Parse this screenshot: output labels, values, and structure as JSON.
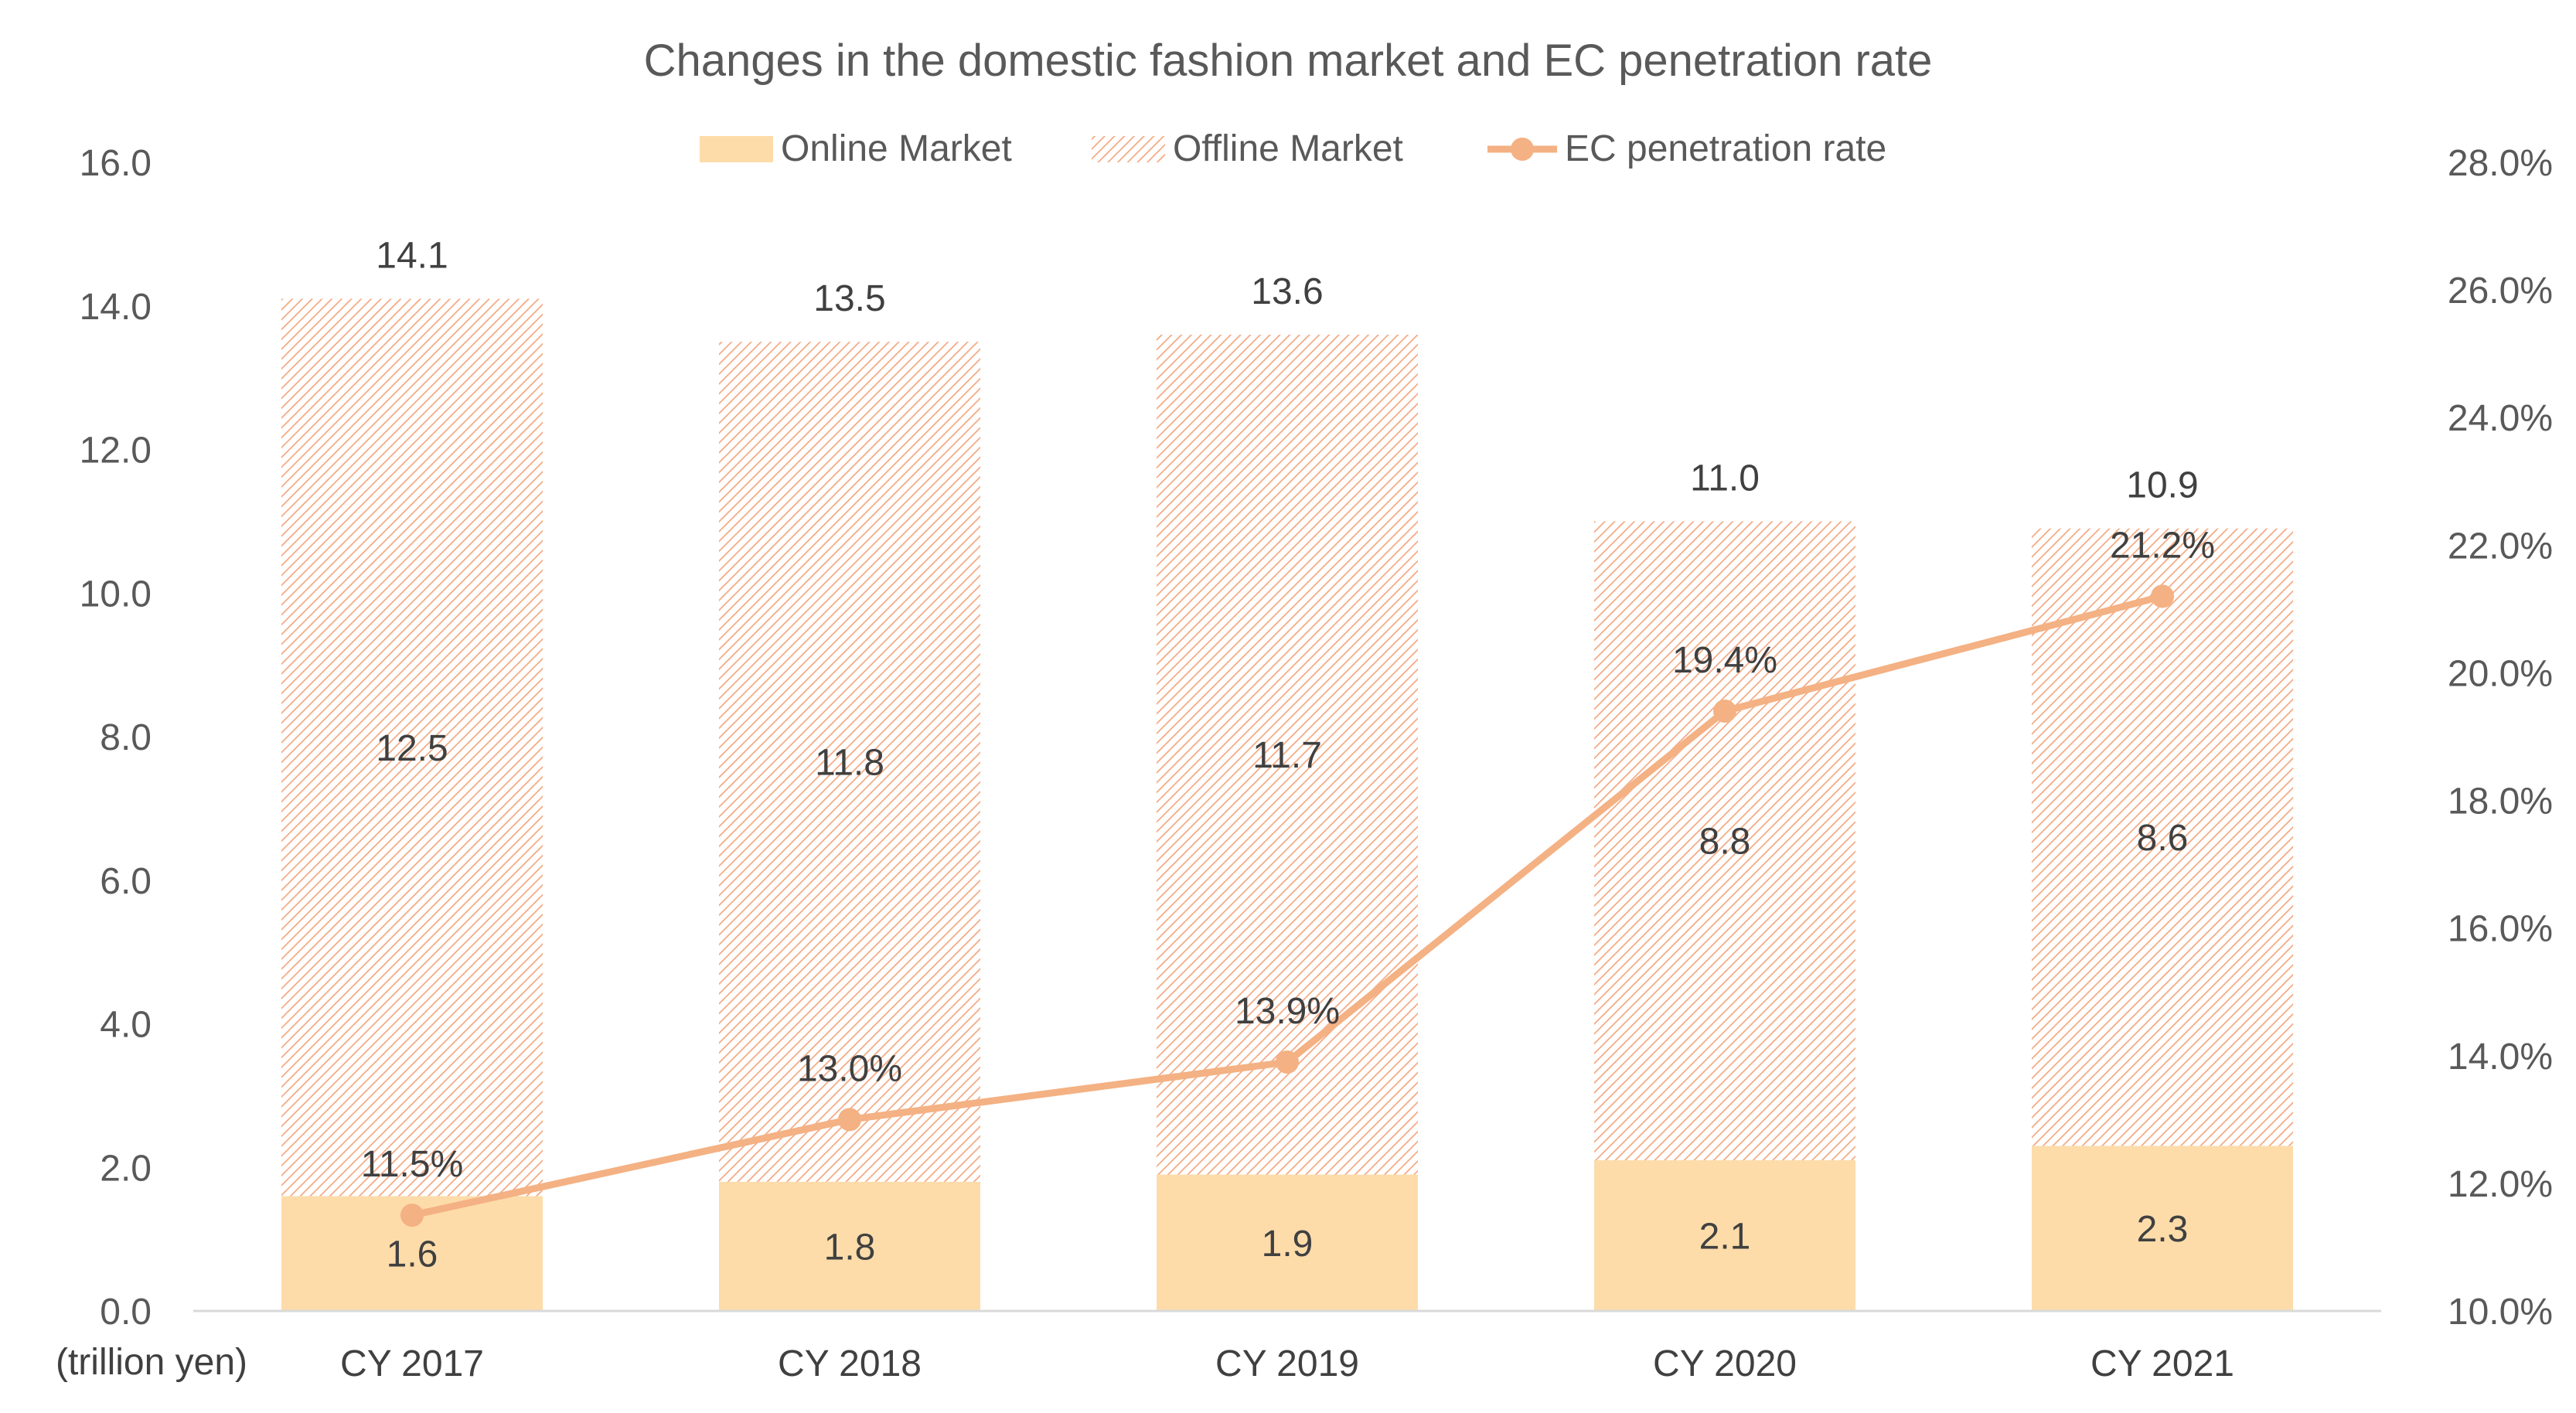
{
  "chart_data": {
    "type": "bar",
    "subtype": "stacked-bar-with-line",
    "title": "Changes in the domestic fashion market and EC penetration rate",
    "ylabel_unit": "(trillion yen)",
    "categories": [
      "CY 2017",
      "CY 2018",
      "CY 2019",
      "CY 2020",
      "CY 2021"
    ],
    "series": [
      {
        "name": "Online Market",
        "kind": "bar",
        "axis": "left",
        "values": [
          1.6,
          1.8,
          1.9,
          2.1,
          2.3
        ],
        "labels": [
          "1.6",
          "1.8",
          "1.9",
          "2.1",
          "2.3"
        ],
        "color": "#FDDCAA"
      },
      {
        "name": "Offline Market",
        "kind": "bar",
        "axis": "left",
        "pattern": "diagonal-hatch",
        "values": [
          12.5,
          11.8,
          11.7,
          8.8,
          8.6
        ],
        "labels": [
          "12.5",
          "11.8",
          "11.7",
          "8.8",
          "8.6"
        ],
        "color": "#F4A983"
      },
      {
        "name": "EC penetration rate",
        "kind": "line",
        "axis": "right",
        "values": [
          11.5,
          13.0,
          13.9,
          19.4,
          21.2
        ],
        "labels": [
          "11.5%",
          "13.0%",
          "13.9%",
          "19.4%",
          "21.2%"
        ],
        "color": "#F4B183"
      }
    ],
    "totals": [
      14.1,
      13.5,
      13.6,
      11.0,
      10.9
    ],
    "total_labels": [
      "14.1",
      "13.5",
      "13.6",
      "11.0",
      "10.9"
    ],
    "ylim": [
      0,
      16
    ],
    "y_ticks": [
      "0.0",
      "2.0",
      "4.0",
      "6.0",
      "8.0",
      "10.0",
      "12.0",
      "14.0",
      "16.0"
    ],
    "y2lim": [
      10,
      28
    ],
    "y2_ticks": [
      "10.0%",
      "12.0%",
      "14.0%",
      "16.0%",
      "18.0%",
      "20.0%",
      "22.0%",
      "24.0%",
      "26.0%",
      "28.0%"
    ],
    "grid": false,
    "legend_position": "top-center"
  }
}
